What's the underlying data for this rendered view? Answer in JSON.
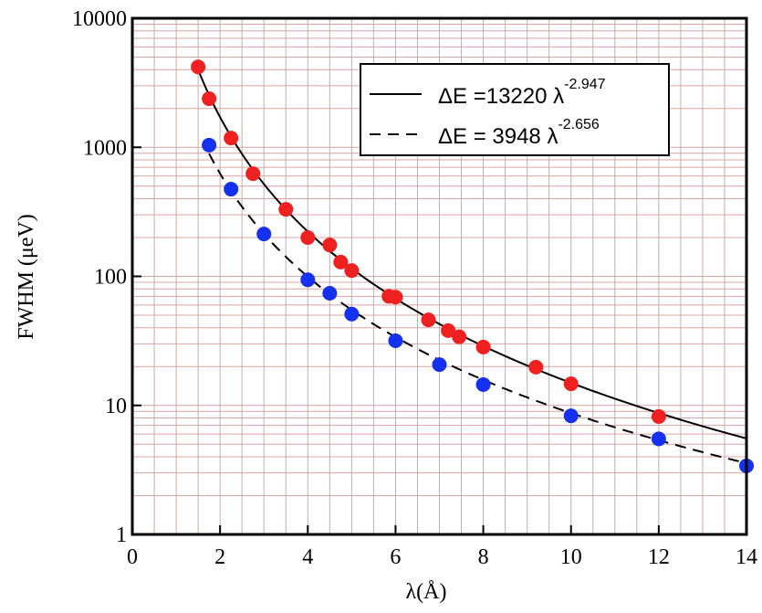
{
  "chart_data": {
    "type": "scatter",
    "xlabel": "λ(Å)",
    "ylabel": "FWHM (μeV)",
    "xlim": [
      0,
      14
    ],
    "xticks": [
      0,
      2,
      4,
      6,
      8,
      10,
      12,
      14
    ],
    "xminorticks": [
      0.5,
      1,
      1.5,
      2.5,
      3,
      3.5,
      4.5,
      5,
      5.5,
      6.5,
      7,
      7.5,
      8.5,
      9,
      9.5,
      10.5,
      11,
      11.5,
      12.5,
      13,
      13.5
    ],
    "ylim": [
      1,
      10000
    ],
    "yticks": [
      1,
      10,
      100,
      1000,
      10000
    ],
    "log_y": true,
    "yminorticks": [
      2,
      3,
      4,
      5,
      6,
      7,
      8,
      9,
      20,
      30,
      40,
      50,
      60,
      70,
      80,
      90,
      200,
      300,
      400,
      500,
      600,
      700,
      800,
      900,
      2000,
      3000,
      4000,
      5000,
      6000,
      7000,
      8000,
      9000
    ],
    "grid": true,
    "grid_color": "#d8a4a4",
    "series": [
      {
        "color": "#ee2020",
        "x": [
          1.5,
          1.75,
          2.25,
          2.75,
          3.5,
          4.0,
          4.5,
          4.75,
          5.0,
          5.85,
          6.0,
          6.75,
          7.2,
          7.45,
          8.0,
          9.2,
          10,
          12
        ],
        "values": [
          4200,
          2380,
          1180,
          625,
          331,
          200,
          175,
          129,
          111,
          70,
          69,
          46,
          38,
          34,
          28.3,
          19.8,
          14.7,
          8.2
        ]
      },
      {
        "color": "#1530ee",
        "x": [
          1.75,
          2.25,
          3.0,
          4.0,
          4.5,
          5.0,
          6.0,
          7.0,
          8.0,
          10,
          12,
          14
        ],
        "values": [
          1040,
          474,
          213,
          94,
          74,
          51,
          31.7,
          20.7,
          14.5,
          8.3,
          5.5,
          3.4
        ]
      }
    ],
    "fits": [
      {
        "label": "ΔE =13220 λ",
        "exponent_label": "-2.947",
        "a": 13220,
        "b": -2.947,
        "dashed": false,
        "xrange": [
          1.5,
          14
        ]
      },
      {
        "label": "ΔE = 3948 λ",
        "exponent_label": "-2.656",
        "a": 3948,
        "b": -2.656,
        "dashed": true,
        "xrange": [
          1.75,
          14
        ]
      }
    ]
  }
}
